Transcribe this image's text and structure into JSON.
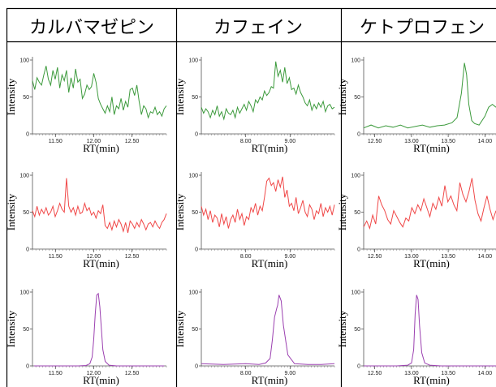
{
  "headers": [
    "カルバマゼピン",
    "カフェイン",
    "ケトプロフェン"
  ],
  "xlabel": "RT(min)",
  "ylabel": "Intensity",
  "chart_data": [
    {
      "type": "line",
      "id": "carbamazepine-green",
      "col": 0,
      "row": 0,
      "color": "#3c9a3c",
      "x_ticks": [
        "11.50",
        "12.00",
        "12.50"
      ],
      "x_tick_values": [
        11.5,
        12.0,
        12.5
      ],
      "y_ticks": [
        "0",
        "50",
        "100"
      ],
      "y_tick_values": [
        0,
        50,
        100
      ],
      "xlim": [
        11.2,
        12.95
      ],
      "ylim": [
        0,
        100
      ],
      "y": [
        72,
        60,
        76,
        70,
        66,
        80,
        92,
        74,
        66,
        86,
        74,
        90,
        62,
        80,
        72,
        86,
        56,
        76,
        62,
        88,
        70,
        74,
        48,
        54,
        66,
        60,
        64,
        82,
        70,
        48,
        40,
        34,
        28,
        38,
        30,
        50,
        26,
        38,
        34,
        48,
        32,
        44,
        36,
        60,
        62,
        52,
        66,
        44,
        26,
        38,
        34,
        22,
        30,
        28,
        36,
        26,
        30,
        24,
        34,
        38
      ]
    },
    {
      "type": "line",
      "id": "carbamazepine-red",
      "col": 0,
      "row": 1,
      "color": "#f04848",
      "x_ticks": [
        "11.50",
        "12.00",
        "12.50"
      ],
      "x_tick_values": [
        11.5,
        12.0,
        12.5
      ],
      "y_ticks": [
        "0",
        "50",
        "100"
      ],
      "y_tick_values": [
        0,
        50,
        100
      ],
      "xlim": [
        11.2,
        12.95
      ],
      "ylim": [
        0,
        100
      ],
      "y": [
        52,
        44,
        58,
        46,
        54,
        48,
        56,
        46,
        50,
        58,
        44,
        52,
        62,
        54,
        50,
        96,
        58,
        50,
        56,
        46,
        58,
        48,
        50,
        62,
        52,
        56,
        46,
        50,
        42,
        52,
        48,
        60,
        32,
        28,
        36,
        26,
        38,
        30,
        40,
        34,
        24,
        36,
        22,
        38,
        34,
        28,
        36,
        30,
        40,
        34,
        26,
        34,
        36,
        30,
        38,
        32,
        28,
        36,
        40,
        48
      ]
    },
    {
      "type": "line",
      "id": "carbamazepine-purple",
      "col": 0,
      "row": 2,
      "color": "#9b40b0",
      "x_ticks": [
        "11.50",
        "12.00",
        "12.50"
      ],
      "x_tick_values": [
        11.5,
        12.0,
        12.5
      ],
      "y_ticks": [
        "0",
        "50",
        "100"
      ],
      "y_tick_values": [
        0,
        50,
        100
      ],
      "xlim": [
        11.2,
        12.95
      ],
      "ylim": [
        0,
        100
      ],
      "x": [
        11.22,
        11.4,
        11.6,
        11.8,
        11.9,
        11.95,
        11.98,
        12.0,
        12.02,
        12.04,
        12.06,
        12.08,
        12.1,
        12.12,
        12.15,
        12.2,
        12.3,
        12.5,
        12.7,
        12.92
      ],
      "y": [
        0,
        0,
        0,
        0,
        0.5,
        3,
        12,
        35,
        70,
        96,
        98,
        80,
        50,
        22,
        6,
        1,
        0,
        0,
        0,
        0
      ]
    },
    {
      "type": "line",
      "id": "caffeine-green",
      "col": 1,
      "row": 0,
      "color": "#3c9a3c",
      "x_ticks": [
        "8.00",
        "9.00"
      ],
      "x_tick_values": [
        8.0,
        9.0
      ],
      "y_ticks": [
        "0",
        "50",
        "100"
      ],
      "y_tick_values": [
        0,
        50,
        100
      ],
      "xlim": [
        7.0,
        10.0
      ],
      "ylim": [
        0,
        100
      ],
      "y": [
        36,
        28,
        34,
        30,
        22,
        32,
        26,
        38,
        24,
        30,
        20,
        34,
        28,
        26,
        32,
        22,
        36,
        28,
        34,
        40,
        32,
        44,
        38,
        30,
        46,
        42,
        50,
        46,
        58,
        52,
        56,
        64,
        62,
        98,
        78,
        86,
        70,
        90,
        68,
        76,
        60,
        62,
        54,
        66,
        56,
        50,
        42,
        38,
        46,
        32,
        40,
        34,
        42,
        36,
        44,
        30,
        38,
        40,
        34,
        36
      ]
    },
    {
      "type": "line",
      "id": "caffeine-red",
      "col": 1,
      "row": 1,
      "color": "#f04848",
      "x_ticks": [
        "8.00",
        "9.00"
      ],
      "x_tick_values": [
        8.0,
        9.0
      ],
      "y_ticks": [
        "0",
        "50",
        "100"
      ],
      "y_tick_values": [
        0,
        50,
        100
      ],
      "xlim": [
        7.0,
        10.0
      ],
      "ylim": [
        0,
        100
      ],
      "y": [
        58,
        46,
        54,
        40,
        52,
        36,
        46,
        42,
        30,
        48,
        34,
        44,
        28,
        40,
        46,
        36,
        54,
        40,
        48,
        32,
        44,
        40,
        56,
        50,
        62,
        46,
        58,
        52,
        70,
        92,
        96,
        86,
        90,
        78,
        94,
        84,
        98,
        70,
        80,
        58,
        62,
        52,
        70,
        48,
        56,
        66,
        50,
        44,
        60,
        54,
        40,
        52,
        48,
        62,
        44,
        56,
        50,
        58,
        46,
        60
      ]
    },
    {
      "type": "line",
      "id": "caffeine-purple",
      "col": 1,
      "row": 2,
      "color": "#9b40b0",
      "x": [
        7.0,
        7.5,
        8.0,
        8.3,
        8.45,
        8.55,
        8.6,
        8.65,
        8.7,
        8.72,
        8.75,
        8.8,
        8.85,
        8.95,
        9.1,
        9.4,
        9.7,
        10.0
      ],
      "y": [
        3,
        2,
        3,
        2,
        4,
        10,
        35,
        66,
        78,
        82,
        96,
        88,
        55,
        15,
        3,
        2,
        2,
        3
      ],
      "x_ticks": [
        "8.00",
        "9.00"
      ],
      "x_tick_values": [
        8.0,
        9.0
      ],
      "y_ticks": [
        "0",
        "50",
        "100"
      ],
      "y_tick_values": [
        0,
        50,
        100
      ],
      "xlim": [
        7.0,
        10.0
      ],
      "ylim": [
        0,
        100
      ]
    },
    {
      "type": "line",
      "id": "ketoprofen-green",
      "col": 2,
      "row": 0,
      "color": "#3c9a3c",
      "x_ticks": [
        "12.50",
        "13.00",
        "13.50",
        "14.00"
      ],
      "x_tick_values": [
        12.5,
        13.0,
        13.5,
        14.0
      ],
      "y_ticks": [
        "0",
        "50",
        "100"
      ],
      "y_tick_values": [
        0,
        50,
        100
      ],
      "xlim": [
        12.35,
        14.15
      ],
      "ylim": [
        0,
        100
      ],
      "x": [
        12.35,
        12.45,
        12.55,
        12.65,
        12.75,
        12.85,
        12.95,
        13.05,
        13.15,
        13.25,
        13.35,
        13.45,
        13.55,
        13.62,
        13.68,
        13.72,
        13.75,
        13.78,
        13.82,
        13.86,
        13.92,
        14.0,
        14.05,
        14.1,
        14.15
      ],
      "y": [
        8,
        12,
        8,
        11,
        9,
        12,
        8,
        10,
        12,
        9,
        11,
        12,
        15,
        22,
        55,
        96,
        80,
        40,
        18,
        14,
        12,
        24,
        36,
        40,
        36
      ]
    },
    {
      "type": "line",
      "id": "ketoprofen-red",
      "col": 2,
      "row": 1,
      "color": "#f04848",
      "x_ticks": [
        "12.50",
        "13.00",
        "13.50",
        "14.00"
      ],
      "x_tick_values": [
        12.5,
        13.0,
        13.5,
        14.0
      ],
      "y_ticks": [
        "0",
        "50",
        "100"
      ],
      "y_tick_values": [
        0,
        50,
        100
      ],
      "xlim": [
        12.35,
        14.15
      ],
      "ylim": [
        0,
        100
      ],
      "y": [
        30,
        38,
        28,
        46,
        34,
        72,
        60,
        52,
        40,
        34,
        52,
        44,
        36,
        30,
        42,
        38,
        56,
        48,
        60,
        52,
        68,
        56,
        44,
        62,
        54,
        70,
        58,
        86,
        64,
        72,
        60,
        52,
        90,
        74,
        64,
        78,
        96,
        66,
        48,
        38,
        56,
        72,
        54,
        40,
        52
      ]
    },
    {
      "type": "line",
      "id": "ketoprofen-purple",
      "col": 2,
      "row": 2,
      "color": "#9b40b0",
      "x_ticks": [
        "12.50",
        "13.00",
        "13.50",
        "14.00"
      ],
      "x_tick_values": [
        12.5,
        13.0,
        13.5,
        14.0
      ],
      "y_ticks": [
        "0",
        "50",
        "100"
      ],
      "y_tick_values": [
        0,
        50,
        100
      ],
      "xlim": [
        12.35,
        14.15
      ],
      "ylim": [
        0,
        100
      ],
      "x": [
        12.35,
        12.6,
        12.8,
        12.95,
        13.0,
        13.03,
        13.05,
        13.07,
        13.09,
        13.11,
        13.14,
        13.18,
        13.25,
        13.4,
        13.7,
        14.15
      ],
      "y": [
        0,
        0,
        0,
        1,
        4,
        22,
        70,
        96,
        90,
        55,
        18,
        4,
        1,
        0,
        0,
        0
      ]
    }
  ]
}
